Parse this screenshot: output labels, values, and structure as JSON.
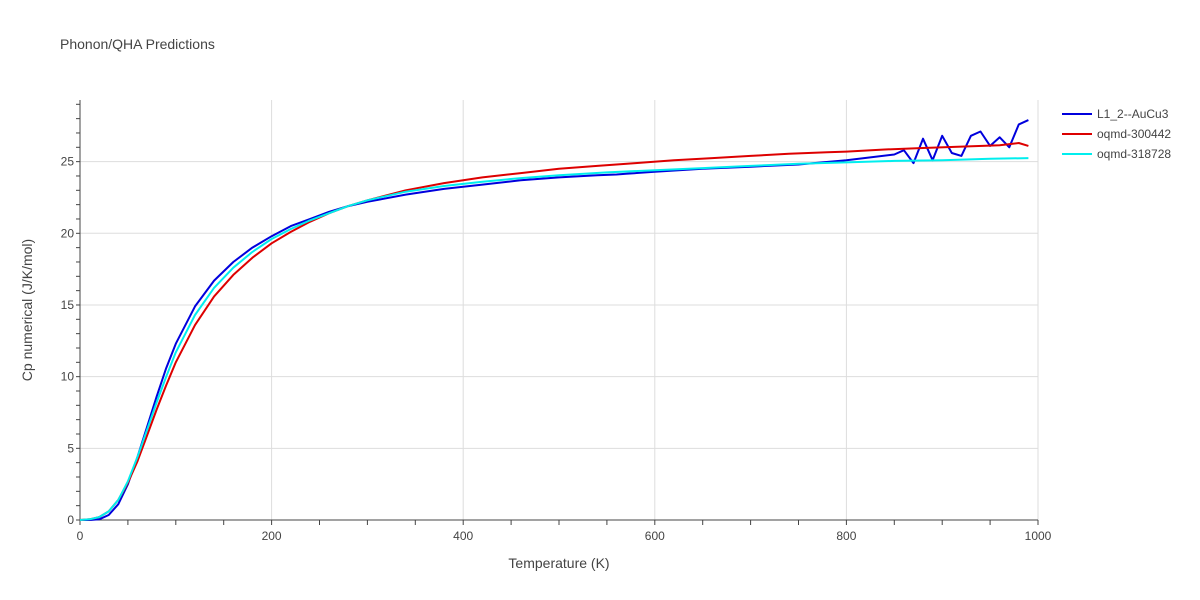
{
  "chart_data": {
    "type": "line",
    "title": "Phonon/QHA Predictions",
    "xlabel": "Temperature (K)",
    "ylabel": "Cp numerical (J/K/mol)",
    "xlim": [
      0,
      1000
    ],
    "ylim": [
      0,
      29.3
    ],
    "xticks": [
      0,
      200,
      400,
      600,
      800,
      1000
    ],
    "yticks": [
      0,
      5,
      10,
      15,
      20,
      25
    ],
    "grid": true,
    "legend_position": "top-right",
    "series": [
      {
        "name": "L1_2--AuCu3",
        "color": "#0000dd",
        "x": [
          0,
          10,
          20,
          30,
          40,
          50,
          60,
          70,
          80,
          90,
          100,
          120,
          140,
          160,
          180,
          200,
          220,
          240,
          260,
          280,
          300,
          340,
          380,
          420,
          460,
          500,
          540,
          560,
          570,
          600,
          650,
          700,
          750,
          800,
          850,
          860,
          870,
          880,
          890,
          900,
          910,
          920,
          930,
          940,
          950,
          960,
          970,
          980,
          990
        ],
        "y": [
          0,
          0.0,
          0.05,
          0.35,
          1.1,
          2.5,
          4.4,
          6.5,
          8.6,
          10.6,
          12.3,
          14.9,
          16.7,
          18.0,
          19.0,
          19.8,
          20.5,
          21.0,
          21.5,
          21.9,
          22.2,
          22.7,
          23.1,
          23.4,
          23.7,
          23.9,
          24.05,
          24.1,
          24.15,
          24.3,
          24.5,
          24.65,
          24.8,
          25.1,
          25.5,
          25.8,
          24.9,
          26.6,
          25.1,
          26.8,
          25.6,
          25.4,
          26.8,
          27.1,
          26.1,
          26.7,
          26.0,
          27.6,
          27.9
        ]
      },
      {
        "name": "oqmd-300442",
        "color": "#dd0000",
        "x": [
          0,
          10,
          20,
          30,
          40,
          50,
          60,
          70,
          80,
          90,
          100,
          120,
          140,
          160,
          180,
          200,
          220,
          240,
          260,
          280,
          300,
          340,
          380,
          420,
          460,
          500,
          540,
          580,
          620,
          660,
          700,
          740,
          760,
          780,
          800,
          840,
          880,
          920,
          960,
          980,
          990
        ],
        "y": [
          0,
          0.05,
          0.2,
          0.6,
          1.4,
          2.6,
          4.1,
          5.9,
          7.7,
          9.4,
          11.0,
          13.6,
          15.6,
          17.1,
          18.3,
          19.3,
          20.1,
          20.8,
          21.4,
          21.9,
          22.3,
          23.0,
          23.5,
          23.9,
          24.2,
          24.5,
          24.7,
          24.9,
          25.1,
          25.25,
          25.4,
          25.55,
          25.6,
          25.65,
          25.7,
          25.85,
          25.95,
          26.05,
          26.15,
          26.3,
          26.1
        ]
      },
      {
        "name": "oqmd-318728",
        "color": "#00eeee",
        "x": [
          0,
          10,
          20,
          30,
          40,
          50,
          60,
          70,
          80,
          90,
          100,
          120,
          140,
          160,
          180,
          200,
          220,
          240,
          260,
          280,
          300,
          340,
          380,
          420,
          460,
          500,
          550,
          600,
          650,
          700,
          750,
          800,
          850,
          900,
          950,
          990
        ],
        "y": [
          0,
          0.05,
          0.2,
          0.6,
          1.4,
          2.7,
          4.4,
          6.3,
          8.2,
          10.0,
          11.7,
          14.3,
          16.2,
          17.6,
          18.7,
          19.6,
          20.3,
          20.9,
          21.4,
          21.9,
          22.3,
          22.9,
          23.3,
          23.6,
          23.85,
          24.05,
          24.25,
          24.4,
          24.55,
          24.7,
          24.85,
          24.95,
          25.05,
          25.1,
          25.2,
          25.25
        ]
      }
    ]
  }
}
